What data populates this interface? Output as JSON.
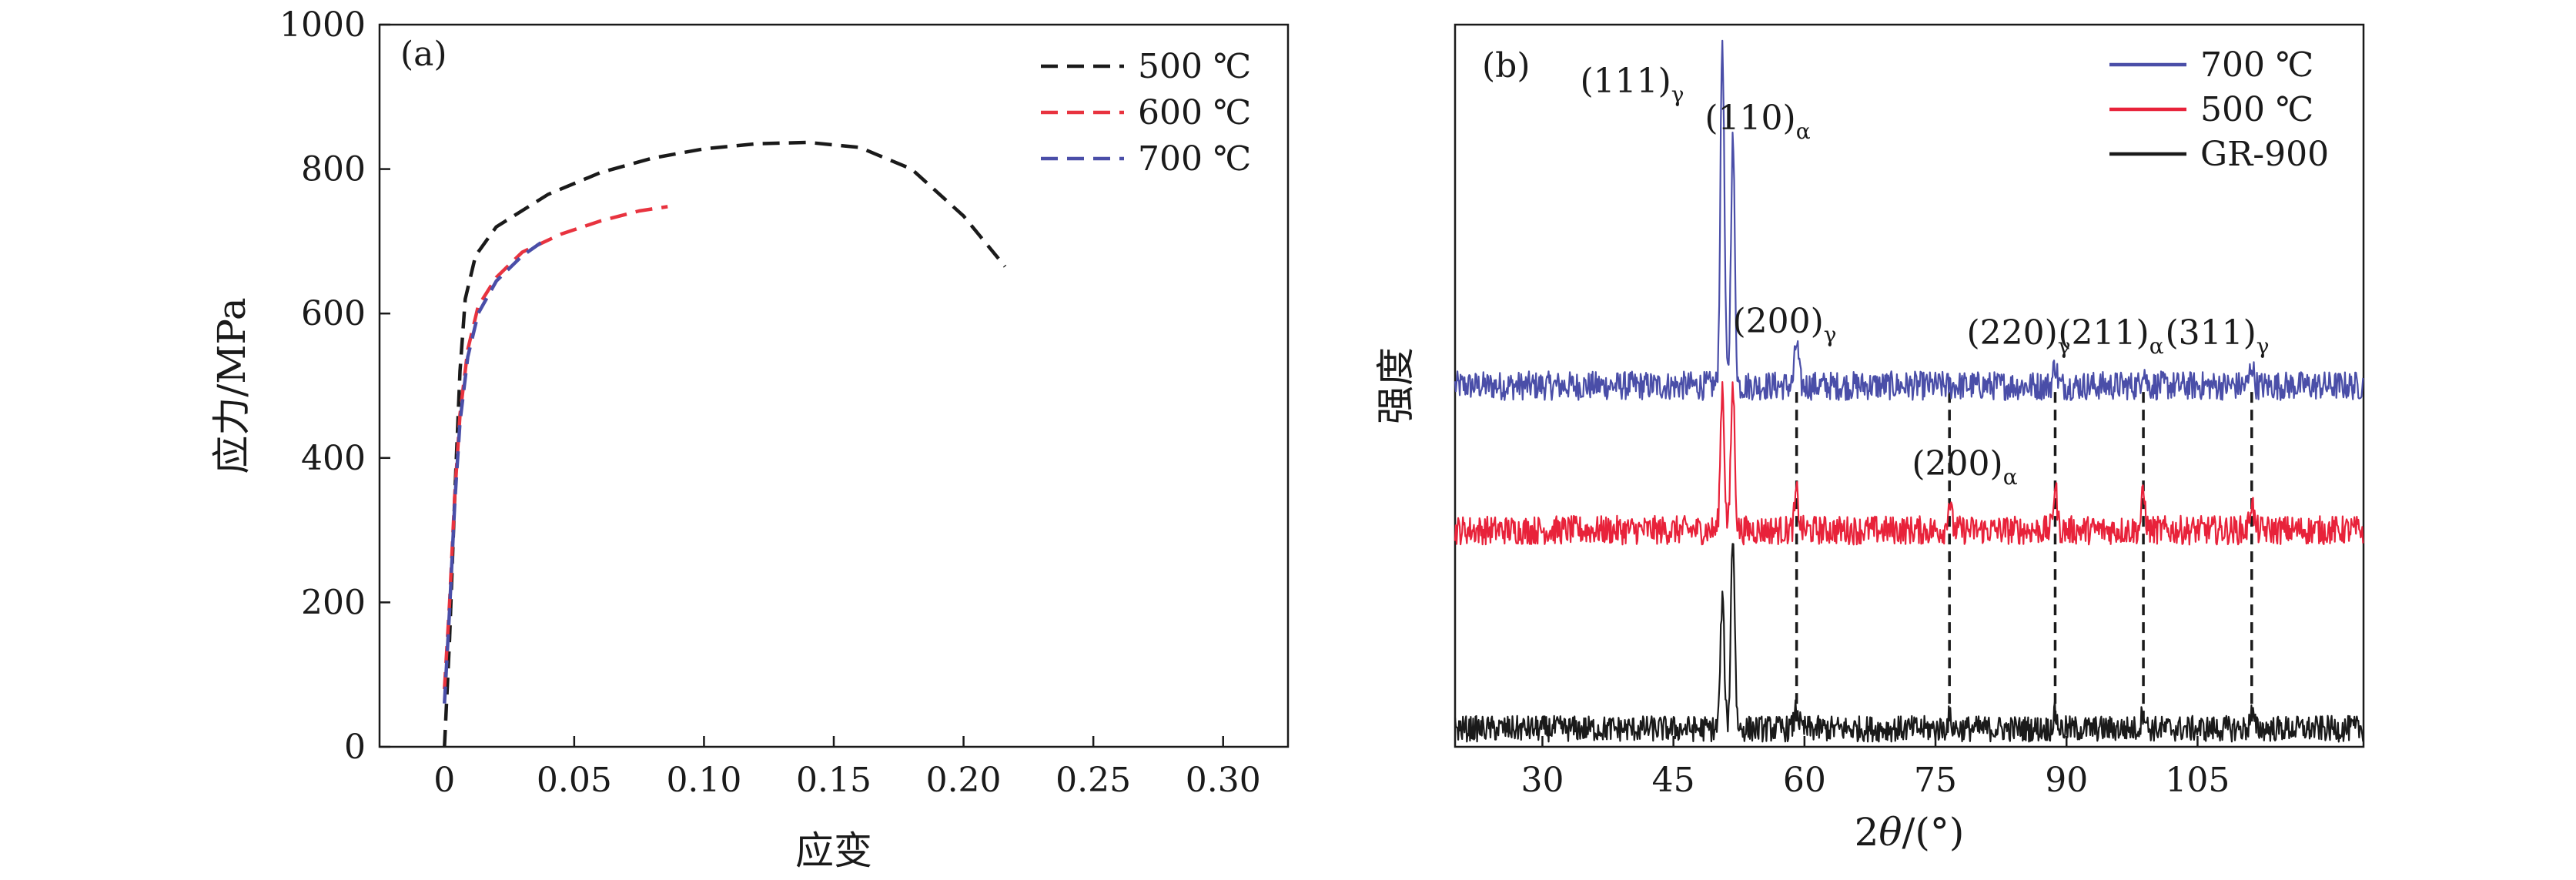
{
  "chart_data": [
    {
      "type": "line",
      "panel_label": "(a)",
      "xlabel": "应变",
      "ylabel": "应力/MPa",
      "xlim": [
        -0.025,
        0.325
      ],
      "ylim": [
        0,
        1000
      ],
      "xticks": [
        0,
        0.05,
        0.1,
        0.15,
        0.2,
        0.25,
        0.3
      ],
      "xtick_labels": [
        "0",
        "0.05",
        "0.10",
        "0.15",
        "0.20",
        "0.25",
        "0.30"
      ],
      "yticks": [
        0,
        200,
        400,
        600,
        800,
        1000
      ],
      "ytick_labels": [
        "0",
        "200",
        "400",
        "600",
        "800",
        "1000"
      ],
      "legend_position": "top-right",
      "series": [
        {
          "name": "500 ℃",
          "color": "#1a1a1a",
          "points": [
            [
              0,
              0
            ],
            [
              0.002,
              150
            ],
            [
              0.004,
              350
            ],
            [
              0.006,
              520
            ],
            [
              0.008,
              620
            ],
            [
              0.012,
              680
            ],
            [
              0.02,
              720
            ],
            [
              0.04,
              765
            ],
            [
              0.06,
              795
            ],
            [
              0.08,
              815
            ],
            [
              0.1,
              828
            ],
            [
              0.12,
              835
            ],
            [
              0.14,
              837
            ],
            [
              0.16,
              830
            ],
            [
              0.18,
              800
            ],
            [
              0.2,
              735
            ],
            [
              0.216,
              665
            ]
          ]
        },
        {
          "name": "600 ℃",
          "color": "#e8333f",
          "points": [
            [
              0,
              80
            ],
            [
              0.002,
              200
            ],
            [
              0.004,
              350
            ],
            [
              0.006,
              460
            ],
            [
              0.009,
              550
            ],
            [
              0.013,
              610
            ],
            [
              0.02,
              650
            ],
            [
              0.03,
              685
            ],
            [
              0.045,
              710
            ],
            [
              0.06,
              728
            ],
            [
              0.075,
              742
            ],
            [
              0.086,
              748
            ]
          ]
        },
        {
          "name": "700 ℃",
          "color": "#4a4ea8",
          "points": [
            [
              0,
              60
            ],
            [
              0.002,
              190
            ],
            [
              0.004,
              340
            ],
            [
              0.006,
              450
            ],
            [
              0.009,
              540
            ],
            [
              0.013,
              600
            ],
            [
              0.02,
              645
            ],
            [
              0.03,
              680
            ],
            [
              0.04,
              705
            ]
          ]
        }
      ]
    },
    {
      "type": "line",
      "panel_label": "(b)",
      "xlabel_prefix": "2",
      "xlabel_theta": "θ",
      "xlabel_suffix": "/(°)",
      "ylabel": "强度",
      "xlim": [
        20,
        124
      ],
      "xticks": [
        30,
        45,
        60,
        75,
        90,
        105
      ],
      "xtick_labels": [
        "30",
        "45",
        "60",
        "75",
        "90",
        "105"
      ],
      "legend_position": "top-right",
      "series": [
        {
          "name": "700 ℃",
          "color": "#4a4ea8",
          "baseline": 0.5,
          "noise": 0.02,
          "peaks": [
            {
              "x": 50.6,
              "h": 0.48
            },
            {
              "x": 51.8,
              "h": 0.34
            },
            {
              "x": 59.1,
              "h": 0.06
            },
            {
              "x": 88.7,
              "h": 0.03
            },
            {
              "x": 98.8,
              "h": 0.025
            },
            {
              "x": 111.2,
              "h": 0.03
            }
          ]
        },
        {
          "name": "500 ℃",
          "color": "#e8223a",
          "baseline": 0.3,
          "noise": 0.02,
          "peaks": [
            {
              "x": 50.6,
              "h": 0.2
            },
            {
              "x": 51.8,
              "h": 0.2
            },
            {
              "x": 59.1,
              "h": 0.05
            },
            {
              "x": 76.6,
              "h": 0.04
            },
            {
              "x": 88.7,
              "h": 0.06
            },
            {
              "x": 98.8,
              "h": 0.05
            },
            {
              "x": 111.2,
              "h": 0.04
            }
          ]
        },
        {
          "name": "GR-900",
          "color": "#1a1a1a",
          "baseline": 0.025,
          "noise": 0.018,
          "peaks": [
            {
              "x": 50.6,
              "h": 0.18
            },
            {
              "x": 51.8,
              "h": 0.27
            },
            {
              "x": 59.1,
              "h": 0.03
            },
            {
              "x": 76.6,
              "h": 0.015
            },
            {
              "x": 88.7,
              "h": 0.02
            },
            {
              "x": 98.8,
              "h": 0.025
            },
            {
              "x": 111.2,
              "h": 0.02
            }
          ]
        }
      ],
      "reference_lines_x": [
        59.1,
        76.6,
        88.7,
        98.8,
        111.2
      ],
      "peak_labels": [
        {
          "main": "(111)",
          "sub": "γ",
          "x": 50.6
        },
        {
          "main": "(110)",
          "sub": "α",
          "x": 51.8
        },
        {
          "main": "(200)",
          "sub": "γ",
          "x": 59.1
        },
        {
          "main": "(200)",
          "sub": "α",
          "x": 76.6
        },
        {
          "main": "(220)",
          "sub": "γ",
          "x": 88.7
        },
        {
          "main": "(211)",
          "sub": "α",
          "x": 98.8
        },
        {
          "main": "(311)",
          "sub": "γ",
          "x": 111.2
        }
      ]
    }
  ]
}
